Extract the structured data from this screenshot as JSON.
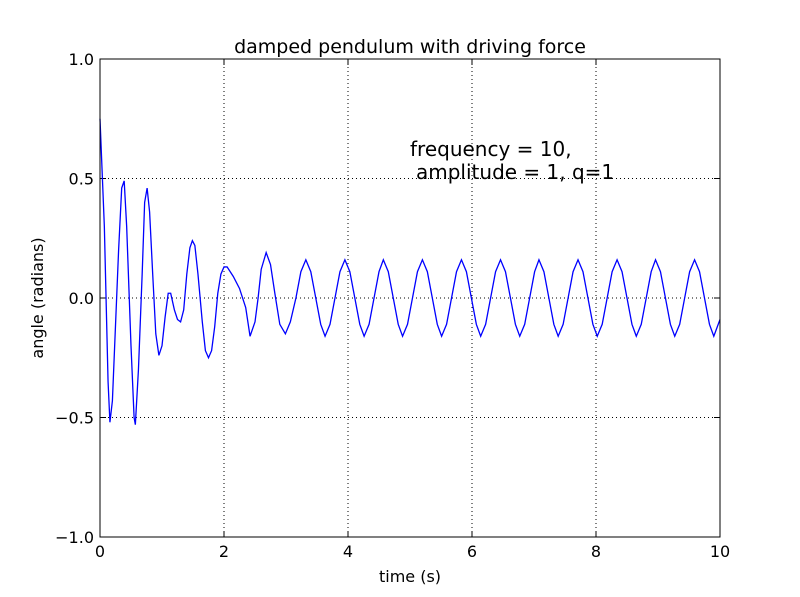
{
  "chart_data": {
    "type": "line",
    "title": "damped pendulum with driving force",
    "xlabel": "time (s)",
    "ylabel": "angle (radians)",
    "annotation": [
      "frequency = 10,",
      "amplitude = 1, q=1"
    ],
    "xlim": [
      0,
      10
    ],
    "ylim": [
      -1,
      1
    ],
    "xticks": [
      0,
      2,
      4,
      6,
      8,
      10
    ],
    "yticks": [
      {
        "value": -1,
        "label": "−1.0"
      },
      {
        "value": -0.5,
        "label": "−0.5"
      },
      {
        "value": 0,
        "label": "0.0"
      },
      {
        "value": 0.5,
        "label": "0.5"
      },
      {
        "value": 1,
        "label": "1.0"
      }
    ],
    "grid": true,
    "series": [
      {
        "color": "#0000ff",
        "x": [
          0,
          0.07,
          0.13,
          0.16,
          0.2,
          0.3,
          0.35,
          0.39,
          0.43,
          0.5,
          0.55,
          0.57,
          0.62,
          0.68,
          0.72,
          0.76,
          0.8,
          0.85,
          0.9,
          0.95,
          1.0,
          1.05,
          1.1,
          1.14,
          1.2,
          1.25,
          1.3,
          1.35,
          1.4,
          1.45,
          1.49,
          1.53,
          1.58,
          1.65,
          1.7,
          1.75,
          1.8,
          1.85,
          1.9,
          1.95,
          2.0,
          2.05,
          2.15,
          2.25,
          2.35,
          2.42,
          2.5,
          2.55,
          2.6,
          2.68,
          2.75,
          2.82,
          2.9,
          2.99,
          3.07,
          3.16,
          3.24,
          3.32,
          3.4,
          3.48,
          3.56,
          3.63,
          3.71,
          3.79,
          3.87,
          3.95,
          4.03,
          4.11,
          4.19,
          4.26,
          4.34,
          4.42,
          4.5,
          4.57,
          4.65,
          4.73,
          4.81,
          4.88,
          4.96,
          5.04,
          5.12,
          5.2,
          5.28,
          5.36,
          5.44,
          5.51,
          5.59,
          5.67,
          5.75,
          5.83,
          5.91,
          5.99,
          6.07,
          6.14,
          6.22,
          6.3,
          6.38,
          6.46,
          6.54,
          6.62,
          6.7,
          6.77,
          6.85,
          6.93,
          7.01,
          7.08,
          7.16,
          7.24,
          7.32,
          7.39,
          7.47,
          7.55,
          7.63,
          7.71,
          7.79,
          7.87,
          7.95,
          8.02,
          8.1,
          8.18,
          8.26,
          8.34,
          8.42,
          8.5,
          8.58,
          8.65,
          8.73,
          8.81,
          8.89,
          8.96,
          9.04,
          9.12,
          9.2,
          9.27,
          9.35,
          9.43,
          9.51,
          9.59,
          9.67,
          9.75,
          9.83,
          9.9,
          10
        ],
        "values": [
          0.75,
          0.3,
          -0.35,
          -0.52,
          -0.43,
          0.2,
          0.46,
          0.49,
          0.3,
          -0.2,
          -0.5,
          -0.53,
          -0.3,
          0.1,
          0.4,
          0.46,
          0.36,
          0.1,
          -0.15,
          -0.24,
          -0.2,
          -0.08,
          0.02,
          0.02,
          -0.05,
          -0.09,
          -0.1,
          -0.05,
          0.1,
          0.21,
          0.24,
          0.22,
          0.1,
          -0.1,
          -0.22,
          -0.25,
          -0.22,
          -0.12,
          0.02,
          0.1,
          0.13,
          0.13,
          0.09,
          0.04,
          -0.04,
          -0.16,
          -0.1,
          0.0,
          0.12,
          0.19,
          0.14,
          0.02,
          -0.11,
          -0.15,
          -0.1,
          0.0,
          0.11,
          0.16,
          0.11,
          0,
          -0.11,
          -0.16,
          -0.11,
          0,
          0.11,
          0.16,
          0.11,
          0,
          -0.11,
          -0.16,
          -0.11,
          0,
          0.11,
          0.16,
          0.11,
          0,
          -0.11,
          -0.16,
          -0.11,
          0,
          0.11,
          0.16,
          0.11,
          0,
          -0.11,
          -0.16,
          -0.11,
          0,
          0.11,
          0.16,
          0.11,
          0,
          -0.11,
          -0.16,
          -0.11,
          0,
          0.11,
          0.16,
          0.11,
          0,
          -0.11,
          -0.16,
          -0.11,
          0,
          0.11,
          0.16,
          0.11,
          0,
          -0.11,
          -0.16,
          -0.11,
          0,
          0.11,
          0.16,
          0.11,
          0,
          -0.11,
          -0.16,
          -0.11,
          0,
          0.11,
          0.16,
          0.11,
          0,
          -0.11,
          -0.16,
          -0.11,
          0,
          0.11,
          0.16,
          0.11,
          0,
          -0.11,
          -0.16,
          -0.11,
          0,
          0.11,
          0.16,
          0.11,
          0,
          -0.11,
          -0.16,
          -0.09
        ]
      }
    ]
  }
}
